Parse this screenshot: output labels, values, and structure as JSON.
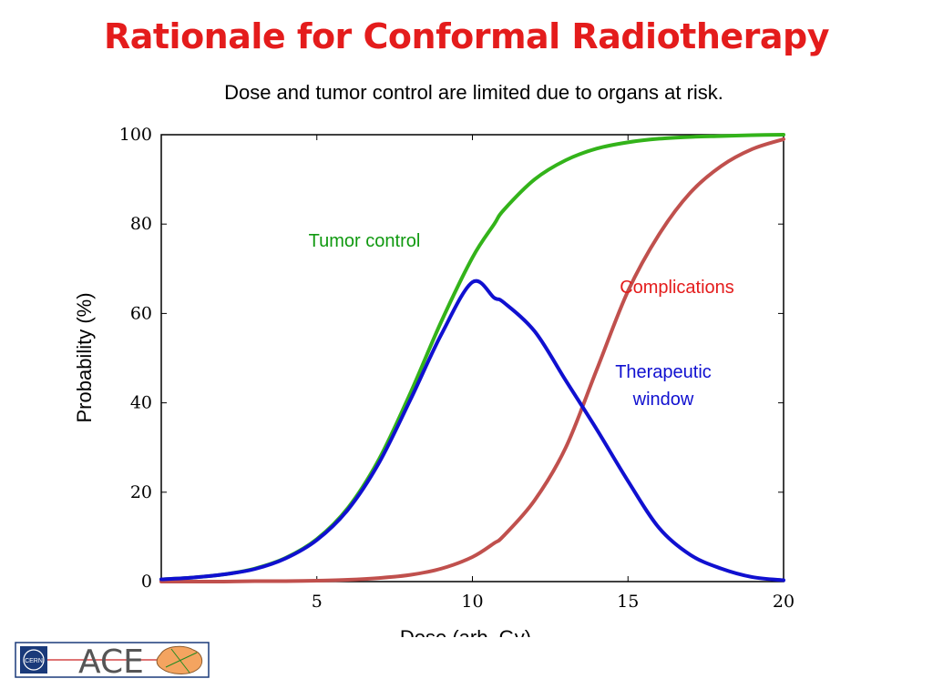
{
  "slide": {
    "title": "Rationale for Conformal Radiotherapy",
    "subtitle": "Dose and tumor control are limited due to organs at risk."
  },
  "chart_data": {
    "type": "line",
    "title": "",
    "xlabel": "Dose (arb. Gy)",
    "ylabel": "Probability (%)",
    "xlim": [
      0,
      20
    ],
    "ylim": [
      0,
      100
    ],
    "xticks": [
      5,
      10,
      15,
      20
    ],
    "yticks": [
      0,
      20,
      40,
      60,
      80,
      100
    ],
    "grid": false,
    "x": [
      0,
      1,
      2,
      3,
      4,
      5,
      6,
      7,
      8,
      9,
      10,
      10.7,
      11,
      12,
      13,
      14,
      15,
      16,
      17,
      18,
      19,
      20
    ],
    "series": [
      {
        "color": "#33b31a",
        "values": [
          0.5,
          0.9,
          1.6,
          2.9,
          5.3,
          9.5,
          16.5,
          27.4,
          42.1,
          58.2,
          72.5,
          80.0,
          83.1,
          90.0,
          94.3,
          96.9,
          98.3,
          99.1,
          99.5,
          99.7,
          99.9,
          100.0
        ]
      },
      {
        "color": "#c0504d",
        "values": [
          0.0,
          0.0,
          0.0,
          0.1,
          0.1,
          0.2,
          0.4,
          0.8,
          1.5,
          2.9,
          5.5,
          8.6,
          10.2,
          18.2,
          30.0,
          47.5,
          65.0,
          77.7,
          87.0,
          93.0,
          96.8,
          99.0
        ]
      },
      {
        "color": "#1010d0",
        "values": [
          0.5,
          0.9,
          1.6,
          2.8,
          5.2,
          9.3,
          16.1,
          26.6,
          40.6,
          55.3,
          67.0,
          63.5,
          62.5,
          56.0,
          45.0,
          34.0,
          22.5,
          12.0,
          6.0,
          2.9,
          1.0,
          0.3
        ]
      }
    ],
    "annotations": [
      {
        "text": "Tumor control",
        "color": "#109910"
      },
      {
        "text": "Complications",
        "color": "#e41c1c"
      },
      {
        "text": "Therapeutic",
        "color": "#1010d0"
      },
      {
        "text": "window",
        "color": "#1010d0"
      }
    ]
  },
  "logo": {
    "text": "ACE",
    "badge_text": "CERN",
    "border_color": "#1a3a7a",
    "line_color": "#cc2222",
    "blob_color": "#f4a460"
  }
}
